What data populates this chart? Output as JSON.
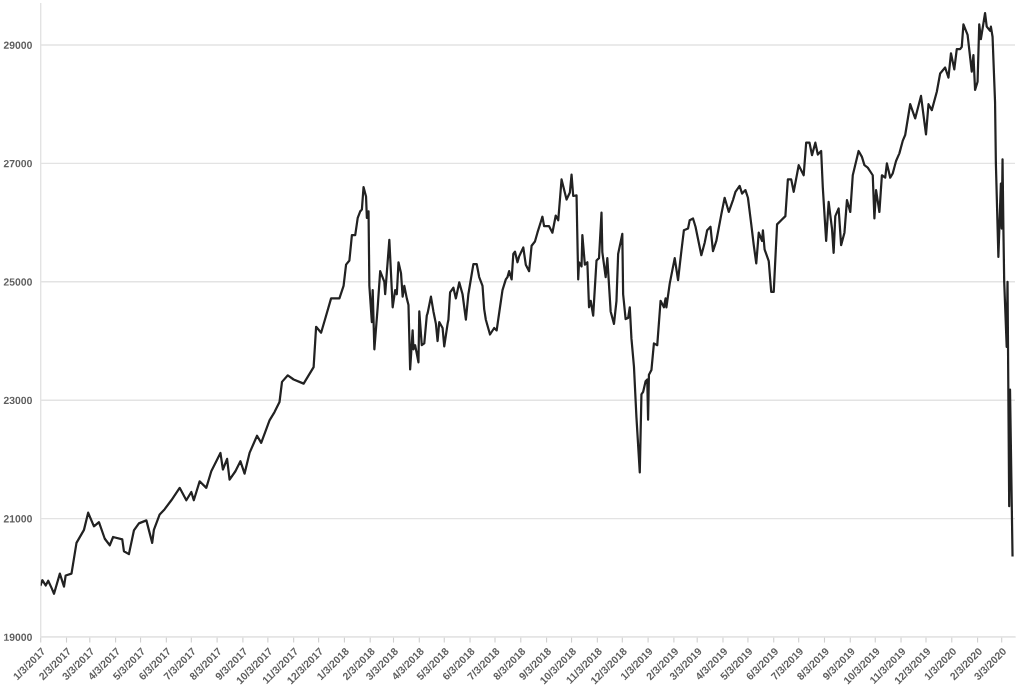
{
  "chart_data": {
    "type": "line",
    "x": [
      "2017-01-03",
      "2017-01-05",
      "2017-01-09",
      "2017-01-12",
      "2017-01-16",
      "2017-01-19",
      "2017-01-26",
      "2017-01-31",
      "2017-02-02",
      "2017-02-09",
      "2017-02-15",
      "2017-02-24",
      "2017-03-01",
      "2017-03-08",
      "2017-03-14",
      "2017-03-21",
      "2017-03-27",
      "2017-03-31",
      "2017-04-11",
      "2017-04-13",
      "2017-04-19",
      "2017-04-25",
      "2017-05-01",
      "2017-05-10",
      "2017-05-17",
      "2017-05-19",
      "2017-05-26",
      "2017-06-01",
      "2017-06-09",
      "2017-06-19",
      "2017-06-27",
      "2017-07-03",
      "2017-07-06",
      "2017-07-13",
      "2017-07-21",
      "2017-07-27",
      "2017-08-07",
      "2017-08-10",
      "2017-08-15",
      "2017-08-18",
      "2017-08-25",
      "2017-08-31",
      "2017-09-05",
      "2017-09-11",
      "2017-09-20",
      "2017-09-25",
      "2017-10-05",
      "2017-10-11",
      "2017-10-17",
      "2017-10-20",
      "2017-10-27",
      "2017-11-03",
      "2017-11-15",
      "2017-11-27",
      "2017-11-30",
      "2017-12-06",
      "2017-12-11",
      "2017-12-18",
      "2017-12-28",
      "2018-01-02",
      "2018-01-05",
      "2018-01-09",
      "2018-01-12",
      "2018-01-16",
      "2018-01-19",
      "2018-01-22",
      "2018-01-24",
      "2018-01-26",
      "2018-01-29",
      "2018-01-30",
      "2018-02-01",
      "2018-02-02",
      "2018-02-05",
      "2018-02-06",
      "2018-02-08",
      "2018-02-12",
      "2018-02-15",
      "2018-02-20",
      "2018-02-21",
      "2018-02-26",
      "2018-03-02",
      "2018-03-05",
      "2018-03-07",
      "2018-03-09",
      "2018-03-12",
      "2018-03-14",
      "2018-03-16",
      "2018-03-19",
      "2018-03-21",
      "2018-03-23",
      "2018-03-26",
      "2018-03-27",
      "2018-03-29",
      "2018-04-02",
      "2018-04-03",
      "2018-04-06",
      "2018-04-09",
      "2018-04-12",
      "2018-04-13",
      "2018-04-17",
      "2018-04-20",
      "2018-04-23",
      "2018-04-25",
      "2018-04-27",
      "2018-05-01",
      "2018-05-03",
      "2018-05-07",
      "2018-05-08",
      "2018-05-10",
      "2018-05-14",
      "2018-05-17",
      "2018-05-21",
      "2018-05-25",
      "2018-05-29",
      "2018-06-01",
      "2018-06-07",
      "2018-06-11",
      "2018-06-14",
      "2018-06-18",
      "2018-06-20",
      "2018-06-22",
      "2018-06-27",
      "2018-07-02",
      "2018-07-05",
      "2018-07-09",
      "2018-07-12",
      "2018-07-16",
      "2018-07-18",
      "2018-07-20",
      "2018-07-23",
      "2018-07-25",
      "2018-07-27",
      "2018-07-30",
      "2018-08-01",
      "2018-08-06",
      "2018-08-09",
      "2018-08-13",
      "2018-08-16",
      "2018-08-20",
      "2018-08-23",
      "2018-08-27",
      "2018-08-29",
      "2018-08-31",
      "2018-09-06",
      "2018-09-10",
      "2018-09-14",
      "2018-09-17",
      "2018-09-21",
      "2018-09-27",
      "2018-10-01",
      "2018-10-03",
      "2018-10-05",
      "2018-10-09",
      "2018-10-11",
      "2018-10-12",
      "2018-10-15",
      "2018-10-16",
      "2018-10-19",
      "2018-10-22",
      "2018-10-24",
      "2018-10-26",
      "2018-10-29",
      "2018-11-02",
      "2018-11-05",
      "2018-11-08",
      "2018-11-09",
      "2018-11-13",
      "2018-11-15",
      "2018-11-19",
      "2018-11-23",
      "2018-11-26",
      "2018-11-28",
      "2018-12-03",
      "2018-12-04",
      "2018-12-07",
      "2018-12-10",
      "2018-12-12",
      "2018-12-14",
      "2018-12-17",
      "2018-12-20",
      "2018-12-24",
      "2018-12-26",
      "2018-12-28",
      "2018-12-31",
      "2019-01-02",
      "2019-01-03",
      "2019-01-04",
      "2019-01-07",
      "2019-01-10",
      "2019-01-14",
      "2019-01-18",
      "2019-01-22",
      "2019-01-24",
      "2019-01-25",
      "2019-01-29",
      "2019-02-04",
      "2019-02-08",
      "2019-02-12",
      "2019-02-15",
      "2019-02-20",
      "2019-02-22",
      "2019-02-26",
      "2019-03-01",
      "2019-03-08",
      "2019-03-12",
      "2019-03-15",
      "2019-03-19",
      "2019-03-22",
      "2019-03-26",
      "2019-04-01",
      "2019-04-05",
      "2019-04-10",
      "2019-04-15",
      "2019-04-18",
      "2019-04-23",
      "2019-04-26",
      "2019-04-30",
      "2019-05-03",
      "2019-05-07",
      "2019-05-10",
      "2019-05-13",
      "2019-05-16",
      "2019-05-20",
      "2019-05-21",
      "2019-05-23",
      "2019-05-28",
      "2019-05-31",
      "2019-06-03",
      "2019-06-07",
      "2019-06-12",
      "2019-06-17",
      "2019-06-20",
      "2019-06-24",
      "2019-06-27",
      "2019-07-03",
      "2019-07-09",
      "2019-07-12",
      "2019-07-16",
      "2019-07-19",
      "2019-07-23",
      "2019-07-26",
      "2019-07-30",
      "2019-08-01",
      "2019-08-05",
      "2019-08-08",
      "2019-08-12",
      "2019-08-14",
      "2019-08-16",
      "2019-08-20",
      "2019-08-23",
      "2019-08-27",
      "2019-08-30",
      "2019-09-03",
      "2019-09-06",
      "2019-09-13",
      "2019-09-17",
      "2019-09-20",
      "2019-09-24",
      "2019-09-30",
      "2019-10-02",
      "2019-10-04",
      "2019-10-08",
      "2019-10-11",
      "2019-10-15",
      "2019-10-17",
      "2019-10-21",
      "2019-10-24",
      "2019-10-28",
      "2019-11-01",
      "2019-11-05",
      "2019-11-08",
      "2019-11-14",
      "2019-11-20",
      "2019-11-27",
      "2019-12-03",
      "2019-12-06",
      "2019-12-10",
      "2019-12-16",
      "2019-12-20",
      "2019-12-26",
      "2019-12-30",
      "2020-01-02",
      "2020-01-06",
      "2020-01-09",
      "2020-01-13",
      "2020-01-15",
      "2020-01-17",
      "2020-01-22",
      "2020-01-27",
      "2020-01-29",
      "2020-01-31",
      "2020-02-03",
      "2020-02-05",
      "2020-02-07",
      "2020-02-12",
      "2020-02-14",
      "2020-02-18",
      "2020-02-19",
      "2020-02-21",
      "2020-02-24",
      "2020-02-25",
      "2020-02-28",
      "2020-03-02",
      "2020-03-03",
      "2020-03-04",
      "2020-03-05",
      "2020-03-06",
      "2020-03-09",
      "2020-03-10",
      "2020-03-12",
      "2020-03-13",
      "2020-03-16"
    ],
    "series": [
      {
        "color": "#222222",
        "values": [
          19880,
          19960,
          19870,
          19950,
          19830,
          19730,
          20070,
          19850,
          20040,
          20070,
          20590,
          20810,
          21100,
          20870,
          20940,
          20660,
          20550,
          20690,
          20650,
          20450,
          20400,
          20800,
          20920,
          20970,
          20590,
          20810,
          21070,
          21160,
          21310,
          21520,
          21310,
          21450,
          21310,
          21630,
          21520,
          21800,
          22110,
          21830,
          22010,
          21660,
          21800,
          21970,
          21760,
          22110,
          22400,
          22280,
          22660,
          22800,
          22970,
          23310,
          23420,
          23350,
          23280,
          23560,
          24240,
          24140,
          24380,
          24720,
          24720,
          24930,
          25290,
          25360,
          25790,
          25790,
          26080,
          26190,
          26220,
          26600,
          26440,
          26080,
          26190,
          24930,
          24320,
          24860,
          23860,
          24570,
          25180,
          25000,
          24790,
          25710,
          24570,
          24860,
          24790,
          25330,
          25150,
          24750,
          24930,
          24720,
          24610,
          23520,
          24180,
          23860,
          23930,
          23640,
          24500,
          23930,
          23960,
          24430,
          24470,
          24750,
          24500,
          24290,
          24000,
          24320,
          24220,
          23910,
          24290,
          24360,
          24820,
          24900,
          24720,
          24990,
          24790,
          24360,
          24790,
          25300,
          25300,
          25080,
          24930,
          24540,
          24360,
          24110,
          24220,
          24180,
          24570,
          24860,
          25040,
          25080,
          25180,
          25040,
          25470,
          25510,
          25330,
          25430,
          25580,
          25290,
          25180,
          25610,
          25680,
          25830,
          26010,
          26100,
          25940,
          25940,
          25830,
          26120,
          26040,
          26730,
          26390,
          26510,
          26810,
          26450,
          26460,
          25040,
          25330,
          25260,
          25790,
          25290,
          25330,
          24570,
          24680,
          24430,
          25360,
          25400,
          26170,
          25500,
          25080,
          25400,
          24500,
          24290,
          24680,
          25470,
          25810,
          24790,
          24370,
          24390,
          24570,
          24040,
          23570,
          22710,
          21780,
          23100,
          23140,
          23320,
          23350,
          22670,
          23430,
          23510,
          23960,
          23930,
          24680,
          24570,
          24720,
          24570,
          24970,
          25400,
          25030,
          25520,
          25870,
          25900,
          26040,
          26070,
          25930,
          25450,
          25660,
          25870,
          25930,
          25520,
          25690,
          26140,
          26420,
          26180,
          26380,
          26520,
          26620,
          26490,
          26550,
          26420,
          25970,
          25620,
          25310,
          25830,
          25690,
          25870,
          25550,
          25350,
          24830,
          24830,
          25970,
          26040,
          26110,
          26730,
          26730,
          26520,
          26970,
          26800,
          27350,
          27350,
          27140,
          27350,
          27150,
          27210,
          26590,
          25690,
          26350,
          25900,
          25490,
          26110,
          26240,
          25620,
          25830,
          26380,
          26180,
          26800,
          27210,
          27110,
          26970,
          26930,
          26800,
          26070,
          26550,
          26180,
          26800,
          26760,
          27000,
          26760,
          26830,
          27040,
          27170,
          27380,
          27480,
          28000,
          27760,
          28140,
          27490,
          28000,
          27900,
          28210,
          28520,
          28620,
          28450,
          28860,
          28590,
          28930,
          28930,
          28970,
          29350,
          29170,
          28550,
          28830,
          28240,
          28380,
          29350,
          29100,
          29540,
          29310,
          29240,
          29310,
          29140,
          28040,
          27000,
          25420,
          26660,
          25900,
          27070,
          25930,
          25000,
          23900,
          25000,
          21210,
          23180,
          20380
        ]
      }
    ],
    "xlim": [
      "2017-01-03",
      "2020-03-19"
    ],
    "xticks": [
      {
        "value": "2017-01-03",
        "label": "1/3/2017"
      },
      {
        "value": "2017-02-03",
        "label": "2/3/2017"
      },
      {
        "value": "2017-03-03",
        "label": "3/3/2017"
      },
      {
        "value": "2017-04-03",
        "label": "4/3/2017"
      },
      {
        "value": "2017-05-03",
        "label": "5/3/2017"
      },
      {
        "value": "2017-06-03",
        "label": "6/3/2017"
      },
      {
        "value": "2017-07-03",
        "label": "7/3/2017"
      },
      {
        "value": "2017-08-03",
        "label": "8/3/2017"
      },
      {
        "value": "2017-09-03",
        "label": "9/3/2017"
      },
      {
        "value": "2017-10-03",
        "label": "10/3/2017"
      },
      {
        "value": "2017-11-03",
        "label": "11/3/2017"
      },
      {
        "value": "2017-12-03",
        "label": "12/3/2017"
      },
      {
        "value": "2018-01-03",
        "label": "1/3/2018"
      },
      {
        "value": "2018-02-03",
        "label": "2/3/2018"
      },
      {
        "value": "2018-03-03",
        "label": "3/3/2018"
      },
      {
        "value": "2018-04-03",
        "label": "4/3/2018"
      },
      {
        "value": "2018-05-03",
        "label": "5/3/2018"
      },
      {
        "value": "2018-06-03",
        "label": "6/3/2018"
      },
      {
        "value": "2018-07-03",
        "label": "7/3/2018"
      },
      {
        "value": "2018-08-03",
        "label": "8/3/2018"
      },
      {
        "value": "2018-09-03",
        "label": "9/3/2018"
      },
      {
        "value": "2018-10-03",
        "label": "10/3/2018"
      },
      {
        "value": "2018-11-03",
        "label": "11/3/2018"
      },
      {
        "value": "2018-12-03",
        "label": "12/3/2018"
      },
      {
        "value": "2019-01-03",
        "label": "1/3/2019"
      },
      {
        "value": "2019-02-03",
        "label": "2/3/2019"
      },
      {
        "value": "2019-03-03",
        "label": "3/3/2019"
      },
      {
        "value": "2019-04-03",
        "label": "4/3/2019"
      },
      {
        "value": "2019-05-03",
        "label": "5/3/2019"
      },
      {
        "value": "2019-06-03",
        "label": "6/3/2019"
      },
      {
        "value": "2019-07-03",
        "label": "7/3/2019"
      },
      {
        "value": "2019-08-03",
        "label": "8/3/2019"
      },
      {
        "value": "2019-09-03",
        "label": "9/3/2019"
      },
      {
        "value": "2019-10-03",
        "label": "10/3/2019"
      },
      {
        "value": "2019-11-03",
        "label": "11/3/2019"
      },
      {
        "value": "2019-12-03",
        "label": "12/3/2019"
      },
      {
        "value": "2020-01-03",
        "label": "1/3/2020"
      },
      {
        "value": "2020-02-03",
        "label": "2/3/2020"
      },
      {
        "value": "2020-03-03",
        "label": "3/3/2020"
      }
    ],
    "ylim": [
      19000,
      29700
    ],
    "yticks": [
      19000,
      21000,
      23000,
      25000,
      27000,
      29000
    ],
    "grid": "y",
    "marker": "none",
    "line_style": "solid"
  }
}
